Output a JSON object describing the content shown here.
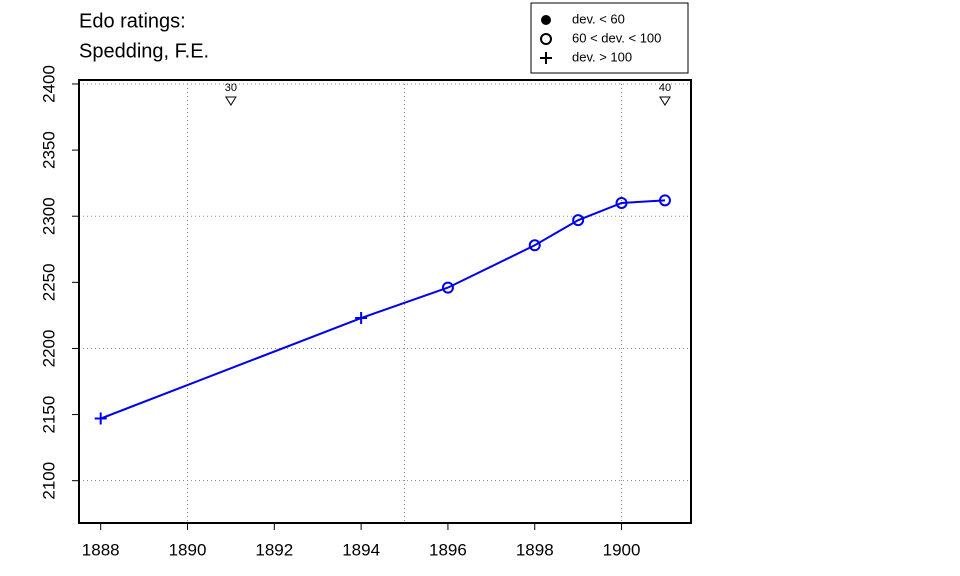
{
  "chart_data": {
    "type": "line",
    "title": [
      "Edo ratings:",
      "Spedding, F.E."
    ],
    "x": [
      1888,
      1894,
      1896,
      1898,
      1899,
      1900,
      1901
    ],
    "series": [
      {
        "color": "#0000ee",
        "values": [
          2147,
          2223,
          2246,
          2278,
          2297,
          2310,
          2312
        ],
        "symbols": [
          "plus",
          "plus",
          "circle",
          "circle",
          "circle",
          "circle",
          "circle"
        ]
      }
    ],
    "xlim": [
      1887.5,
      1901.6
    ],
    "ylim": [
      2068,
      2403
    ],
    "xticks": [
      1888,
      1890,
      1892,
      1894,
      1896,
      1898,
      1900
    ],
    "yticks": [
      2100,
      2150,
      2200,
      2250,
      2300,
      2350,
      2400
    ],
    "xgrid": [
      1890,
      1895,
      1900
    ],
    "ygrid": [
      2100,
      2200,
      2300,
      2400
    ],
    "grid": true,
    "legend": {
      "position": "top-right",
      "entries": [
        {
          "label": "dev. < 60",
          "symbol": "dot"
        },
        {
          "label": "60 < dev. < 100",
          "symbol": "circle"
        },
        {
          "label": "dev. > 100",
          "symbol": "plus"
        }
      ]
    },
    "annotations": [
      {
        "x": 1891,
        "label": "30"
      },
      {
        "x": 1901,
        "label": "40"
      }
    ]
  }
}
